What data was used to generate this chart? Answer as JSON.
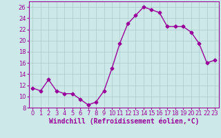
{
  "x": [
    0,
    1,
    2,
    3,
    4,
    5,
    6,
    7,
    8,
    9,
    10,
    11,
    12,
    13,
    14,
    15,
    16,
    17,
    18,
    19,
    20,
    21,
    22,
    23
  ],
  "y": [
    11.5,
    11.0,
    13.0,
    11.0,
    10.5,
    10.5,
    9.5,
    8.5,
    9.0,
    11.0,
    15.0,
    19.5,
    23.0,
    24.5,
    26.0,
    25.5,
    25.0,
    22.5,
    22.5,
    22.5,
    21.5,
    19.5,
    16.0,
    16.5
  ],
  "line_color": "#990099",
  "marker": "D",
  "markersize": 2.5,
  "linewidth": 1.0,
  "xlabel": "Windchill (Refroidissement éolien,°C)",
  "xlim": [
    -0.5,
    23.5
  ],
  "ylim": [
    8,
    27
  ],
  "yticks": [
    8,
    10,
    12,
    14,
    16,
    18,
    20,
    22,
    24,
    26
  ],
  "xticks": [
    0,
    1,
    2,
    3,
    4,
    5,
    6,
    7,
    8,
    9,
    10,
    11,
    12,
    13,
    14,
    15,
    16,
    17,
    18,
    19,
    20,
    21,
    22,
    23
  ],
  "bg_color": "#cce8e8",
  "grid_color": "#aacccc",
  "tick_label_color": "#990099",
  "xlabel_color": "#990099",
  "xlabel_fontsize": 7.0,
  "tick_fontsize": 6.0
}
